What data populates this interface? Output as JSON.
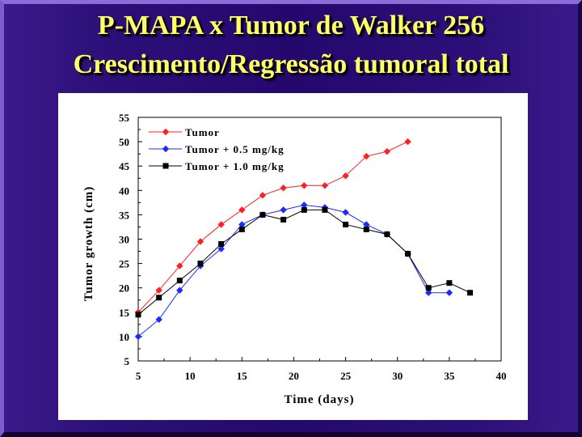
{
  "slide": {
    "title_line1": "P-MAPA x Tumor de Walker 256",
    "title_line2": "Crescimento/Regressão tumoral total"
  },
  "chart_data": {
    "type": "line",
    "xlabel": "Time (days)",
    "ylabel": "Tumor growth (cm)",
    "xlim": [
      5,
      40
    ],
    "ylim": [
      5,
      55
    ],
    "xticks": [
      "5",
      "10",
      "15",
      "20",
      "25",
      "30",
      "35",
      "40"
    ],
    "yticks": [
      "5",
      "10",
      "15",
      "20",
      "25",
      "30",
      "35",
      "40",
      "45",
      "50",
      "55"
    ],
    "grid": false,
    "legend_position": "top-left",
    "series": [
      {
        "name": "Tumor",
        "color": "#ff2020",
        "marker": "diamond",
        "points": [
          [
            5,
            15
          ],
          [
            7,
            19.5
          ],
          [
            9,
            24.5
          ],
          [
            11,
            29.5
          ],
          [
            13,
            33
          ],
          [
            15,
            36
          ],
          [
            17,
            39
          ],
          [
            19,
            40.5
          ],
          [
            21,
            41
          ],
          [
            23,
            41
          ],
          [
            25,
            43
          ],
          [
            27,
            47
          ],
          [
            29,
            48
          ],
          [
            31,
            50
          ]
        ]
      },
      {
        "name": "Tumor + 0.5 mg/kg",
        "color": "#1a2bff",
        "marker": "diamond",
        "points": [
          [
            5,
            10
          ],
          [
            7,
            13.5
          ],
          [
            9,
            19.5
          ],
          [
            11,
            24.5
          ],
          [
            13,
            28
          ],
          [
            15,
            33
          ],
          [
            17,
            35
          ],
          [
            19,
            36
          ],
          [
            21,
            37
          ],
          [
            23,
            36.5
          ],
          [
            25,
            35.5
          ],
          [
            27,
            33
          ],
          [
            29,
            31
          ],
          [
            31,
            27
          ],
          [
            33,
            19
          ],
          [
            35,
            19
          ]
        ]
      },
      {
        "name": "Tumor + 1.0 mg/kg",
        "color": "#000000",
        "marker": "square",
        "points": [
          [
            5,
            14.5
          ],
          [
            7,
            18
          ],
          [
            9,
            21.5
          ],
          [
            11,
            25
          ],
          [
            13,
            29
          ],
          [
            15,
            32
          ],
          [
            17,
            35
          ],
          [
            19,
            34
          ],
          [
            21,
            36
          ],
          [
            23,
            36
          ],
          [
            25,
            33
          ],
          [
            27,
            32
          ],
          [
            29,
            31
          ],
          [
            31,
            27
          ],
          [
            33,
            20
          ],
          [
            35,
            21
          ],
          [
            37,
            19
          ]
        ]
      }
    ]
  }
}
